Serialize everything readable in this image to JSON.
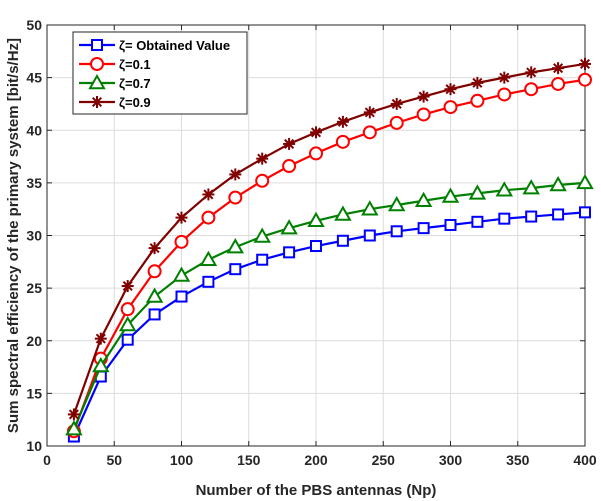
{
  "chart_data": {
    "type": "line",
    "xlabel": "Number of the PBS antennas (Np)",
    "ylabel": "Sum spectral efficiency of the primary system [bit/s/Hz]",
    "xlim": [
      0,
      400
    ],
    "ylim": [
      10,
      50
    ],
    "xticks": [
      0,
      50,
      100,
      150,
      200,
      250,
      300,
      350,
      400
    ],
    "yticks": [
      10,
      15,
      20,
      25,
      30,
      35,
      40,
      45,
      50
    ],
    "grid": true,
    "legend_position": "top-left",
    "x": [
      20,
      40,
      60,
      80,
      100,
      120,
      140,
      160,
      180,
      200,
      220,
      240,
      260,
      280,
      300,
      320,
      340,
      360,
      380,
      400
    ],
    "series": [
      {
        "name": "ζ= Obtained Value",
        "color": "#0000ff",
        "marker": "square",
        "values": [
          10.9,
          16.6,
          20.1,
          22.5,
          24.2,
          25.6,
          26.8,
          27.7,
          28.4,
          29.0,
          29.5,
          30.0,
          30.4,
          30.7,
          31.0,
          31.3,
          31.6,
          31.8,
          32.0,
          32.2
        ]
      },
      {
        "name": "ζ=0.1",
        "color": "#ff0000",
        "marker": "circle",
        "values": [
          11.4,
          18.3,
          23.0,
          26.6,
          29.4,
          31.7,
          33.6,
          35.2,
          36.6,
          37.8,
          38.9,
          39.8,
          40.7,
          41.5,
          42.2,
          42.8,
          43.4,
          43.9,
          44.4,
          44.8
        ]
      },
      {
        "name": "ζ=0.7",
        "color": "#008000",
        "marker": "triangle",
        "values": [
          11.6,
          17.6,
          21.5,
          24.2,
          26.2,
          27.7,
          28.9,
          29.9,
          30.7,
          31.4,
          32.0,
          32.5,
          32.9,
          33.3,
          33.7,
          34.0,
          34.3,
          34.5,
          34.8,
          35.0
        ]
      },
      {
        "name": "ζ=0.9",
        "color": "#800000",
        "marker": "asterisk",
        "values": [
          13.0,
          20.2,
          25.2,
          28.8,
          31.7,
          33.9,
          35.8,
          37.3,
          38.7,
          39.8,
          40.8,
          41.7,
          42.5,
          43.2,
          43.9,
          44.5,
          45.0,
          45.5,
          45.9,
          46.3
        ]
      }
    ]
  }
}
